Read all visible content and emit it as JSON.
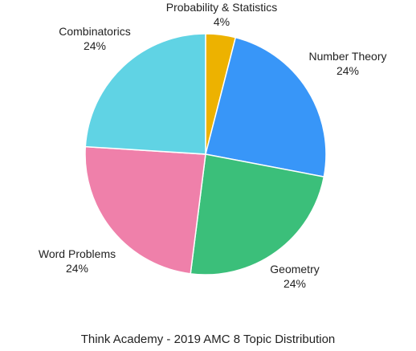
{
  "chart_data": {
    "type": "pie",
    "title": "Think Academy - 2019 AMC 8 Topic Distribution",
    "slices": [
      {
        "label": "Probability & Statistics",
        "value": 4,
        "display": "4%",
        "color": "#EDB200"
      },
      {
        "label": "Number Theory",
        "value": 24,
        "display": "24%",
        "color": "#3896F8"
      },
      {
        "label": "Geometry",
        "value": 24,
        "display": "24%",
        "color": "#3BBF7A"
      },
      {
        "label": "Word Problems",
        "value": 24,
        "display": "24%",
        "color": "#EF80AA"
      },
      {
        "label": "Combinatorics",
        "value": 24,
        "display": "24%",
        "color": "#60D3E4"
      }
    ]
  }
}
